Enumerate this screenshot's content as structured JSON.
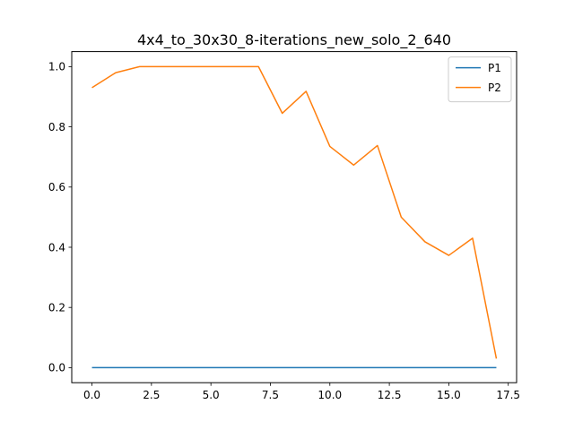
{
  "chart_data": {
    "type": "line",
    "title": "4x4_to_30x30_8-iterations_new_solo_2_640",
    "xlabel": "",
    "ylabel": "",
    "xlim": [
      -0.85,
      17.85
    ],
    "ylim": [
      -0.05,
      1.05
    ],
    "x_ticks": [
      0.0,
      2.5,
      5.0,
      7.5,
      10.0,
      12.5,
      15.0,
      17.5
    ],
    "x_tick_labels": [
      "0.0",
      "2.5",
      "5.0",
      "7.5",
      "10.0",
      "12.5",
      "15.0",
      "17.5"
    ],
    "y_ticks": [
      0.0,
      0.2,
      0.4,
      0.6,
      0.8,
      1.0
    ],
    "y_tick_labels": [
      "0.0",
      "0.2",
      "0.4",
      "0.6",
      "0.8",
      "1.0"
    ],
    "grid": false,
    "legend_position": "top-right",
    "x": [
      0,
      1,
      2,
      3,
      4,
      5,
      6,
      7,
      8,
      9,
      10,
      11,
      12,
      13,
      14,
      15,
      16,
      17
    ],
    "series": [
      {
        "name": "P1",
        "color": "#1f77b4",
        "values": [
          0,
          0,
          0,
          0,
          0,
          0,
          0,
          0,
          0,
          0,
          0,
          0,
          0,
          0,
          0,
          0,
          0,
          0
        ]
      },
      {
        "name": "P2",
        "color": "#ff7f0e",
        "values": [
          0.93,
          0.98,
          1.0,
          1.0,
          1.0,
          1.0,
          1.0,
          1.0,
          0.845,
          0.918,
          0.735,
          0.673,
          0.738,
          0.5,
          0.418,
          0.373,
          0.43,
          0.03
        ]
      }
    ]
  }
}
